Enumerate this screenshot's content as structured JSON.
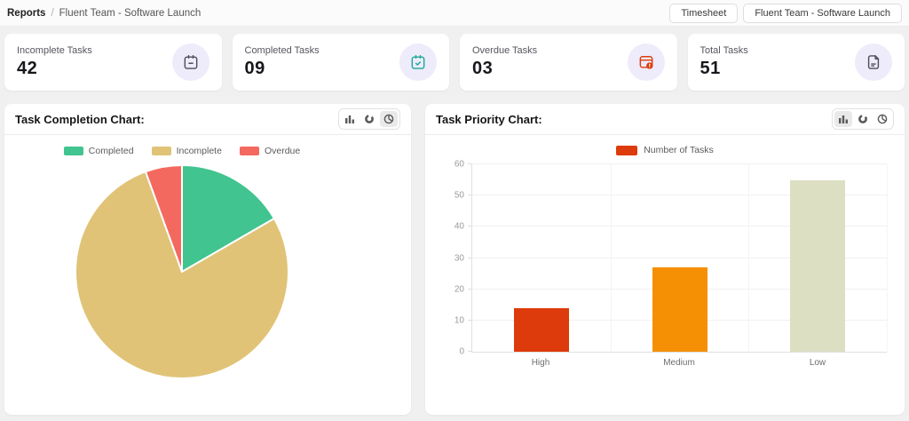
{
  "topbar": {
    "breadcrumb": {
      "root": "Reports",
      "separator": "/",
      "current": "Fluent Team - Software Launch"
    },
    "timesheet_button": "Timesheet",
    "team_select": "Fluent Team - Software Launch"
  },
  "stat_cards": [
    {
      "label": "Incomplete Tasks",
      "value": "42",
      "icon": "calendar-minus-icon",
      "icon_color": "#4c4e58"
    },
    {
      "label": "Completed Tasks",
      "value": "09",
      "icon": "calendar-check-icon",
      "icon_color": "#18a999"
    },
    {
      "label": "Overdue Tasks",
      "value": "03",
      "icon": "calendar-alert-icon",
      "icon_color": "#dd3b0b"
    },
    {
      "label": "Total Tasks",
      "value": "51",
      "icon": "document-icon",
      "icon_color": "#4c4e58"
    }
  ],
  "panels": {
    "completion": {
      "active_chart_type": "pie"
    },
    "priority": {
      "active_chart_type": "bar"
    }
  },
  "chart_data": [
    {
      "type": "pie",
      "title": "Task Completion Chart:",
      "labels": [
        "Completed",
        "Incomplete",
        "Overdue"
      ],
      "values": [
        9,
        42,
        3
      ],
      "colors": [
        "#41c48f",
        "#e0c377",
        "#f4695f"
      ],
      "legend_position": "top",
      "start_angle_deg": 0,
      "direction": "clockwise"
    },
    {
      "type": "bar",
      "title": "Task Priority Chart:",
      "categories": [
        "High",
        "Medium",
        "Low"
      ],
      "series": [
        {
          "name": "Number of Tasks",
          "values": [
            14,
            27,
            55
          ]
        }
      ],
      "bar_colors": [
        "#dd3b0b",
        "#f59005",
        "#dcdfc2"
      ],
      "legend_marker_color": "#dd3b0b",
      "legend_position": "top",
      "xlabel": "",
      "ylabel": "",
      "ylim": [
        0,
        60
      ],
      "yticks": [
        0,
        10,
        20,
        30,
        40,
        50,
        60
      ],
      "grid": true
    }
  ],
  "ui": {
    "icon_circle_bg": "#eeebfb",
    "accent_active_toolbar_bg": "#e9e9e9"
  }
}
